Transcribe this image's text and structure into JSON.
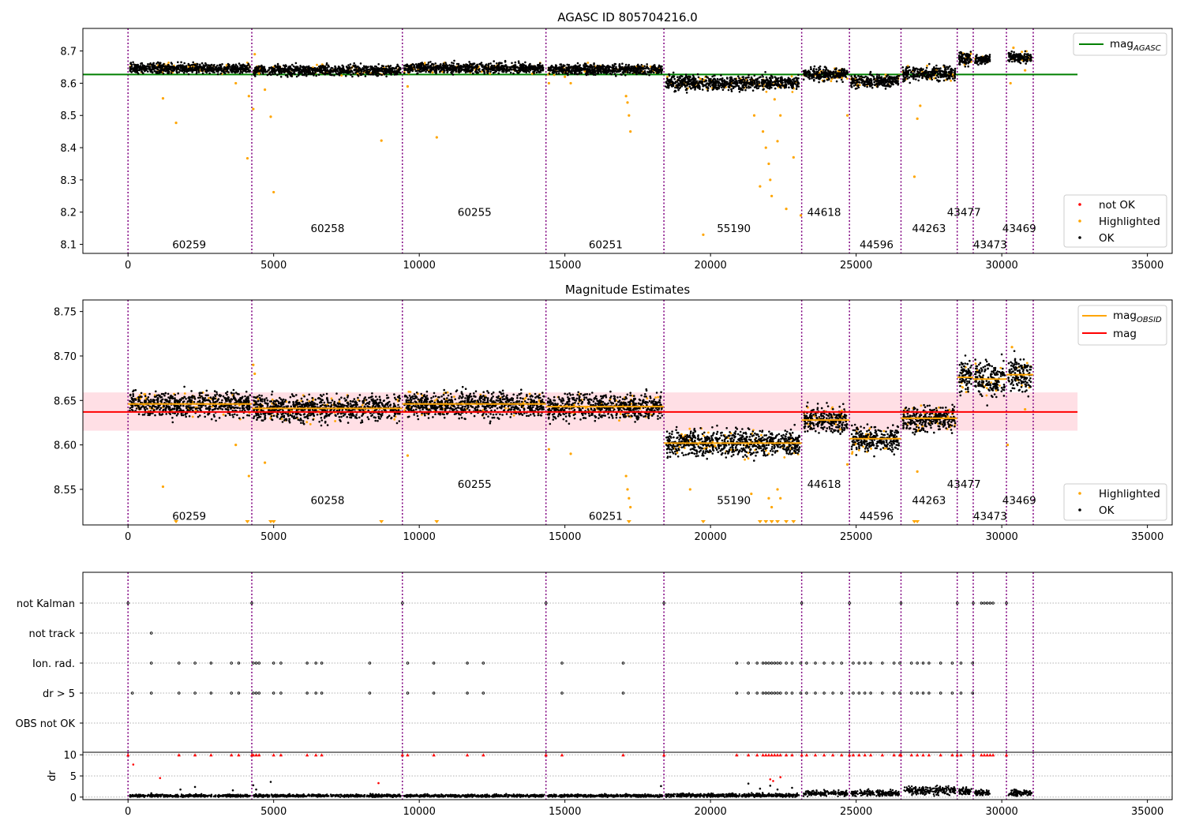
{
  "chart_data": [
    {
      "type": "scatter",
      "title": "AGASC ID 805704216.0",
      "xlim": [
        -1550,
        35850
      ],
      "ylim": [
        8.072,
        8.77
      ],
      "xticks": [
        0,
        5000,
        10000,
        15000,
        20000,
        25000,
        30000,
        35000
      ],
      "yticks": [
        8.1,
        8.2,
        8.3,
        8.4,
        8.5,
        8.6,
        8.7
      ],
      "mag_agasc": 8.627,
      "mag_agasc_x_range": [
        -1550,
        32600
      ],
      "obsid_boundaries": [
        0,
        4250,
        9420,
        14350,
        18400,
        23130,
        24770,
        26540,
        28470,
        29020,
        30160,
        31080
      ],
      "obsid_labels": [
        {
          "obsid": "60259",
          "x": 2100,
          "y": 8.1
        },
        {
          "obsid": "60258",
          "x": 6850,
          "y": 8.15
        },
        {
          "obsid": "60255",
          "x": 11900,
          "y": 8.2
        },
        {
          "obsid": "60251",
          "x": 16400,
          "y": 8.1
        },
        {
          "obsid": "55190",
          "x": 20800,
          "y": 8.15
        },
        {
          "obsid": "44618",
          "x": 23900,
          "y": 8.2
        },
        {
          "obsid": "44596",
          "x": 25700,
          "y": 8.1
        },
        {
          "obsid": "44263",
          "x": 27500,
          "y": 8.15
        },
        {
          "obsid": "43477",
          "x": 28700,
          "y": 8.2
        },
        {
          "obsid": "43473",
          "x": 29600,
          "y": 8.1
        },
        {
          "obsid": "43469",
          "x": 30600,
          "y": 8.15
        }
      ],
      "ok_segments": [
        {
          "x": [
            0,
            4250
          ],
          "mean": 8.646,
          "spread": 0.014
        },
        {
          "x": [
            4250,
            9420
          ],
          "mean": 8.64,
          "spread": 0.014
        },
        {
          "x": [
            9420,
            14350
          ],
          "mean": 8.647,
          "spread": 0.014
        },
        {
          "x": [
            14350,
            18400
          ],
          "mean": 8.643,
          "spread": 0.014
        },
        {
          "x": [
            18400,
            23130
          ],
          "mean": 8.601,
          "spread": 0.02
        },
        {
          "x": [
            23130,
            24770
          ],
          "mean": 8.628,
          "spread": 0.018
        },
        {
          "x": [
            24770,
            26540
          ],
          "mean": 8.607,
          "spread": 0.018
        },
        {
          "x": [
            26540,
            28470
          ],
          "mean": 8.63,
          "spread": 0.02
        },
        {
          "x": [
            28470,
            29020
          ],
          "mean": 8.676,
          "spread": 0.02
        },
        {
          "x": [
            29020,
            29650
          ],
          "mean": 8.674,
          "spread": 0.012
        },
        {
          "x": [
            30160,
            31080
          ],
          "mean": 8.68,
          "spread": 0.015
        }
      ],
      "highlighted_points": [
        [
          1200,
          8.553
        ],
        [
          1650,
          8.477
        ],
        [
          3700,
          8.6
        ],
        [
          4100,
          8.367
        ],
        [
          4150,
          8.56
        ],
        [
          4300,
          8.52
        ],
        [
          4350,
          8.69
        ],
        [
          4500,
          8.63
        ],
        [
          4700,
          8.58
        ],
        [
          4900,
          8.496
        ],
        [
          5000,
          8.262
        ],
        [
          8700,
          8.422
        ],
        [
          9600,
          8.59
        ],
        [
          10600,
          8.432
        ],
        [
          14450,
          8.6
        ],
        [
          15000,
          8.62
        ],
        [
          15200,
          8.6
        ],
        [
          17100,
          8.56
        ],
        [
          17150,
          8.54
        ],
        [
          17200,
          8.5
        ],
        [
          17250,
          8.45
        ],
        [
          19750,
          8.13
        ],
        [
          21500,
          8.5
        ],
        [
          21700,
          8.28
        ],
        [
          21800,
          8.45
        ],
        [
          21900,
          8.4
        ],
        [
          22000,
          8.35
        ],
        [
          22050,
          8.3
        ],
        [
          22100,
          8.25
        ],
        [
          22200,
          8.55
        ],
        [
          22300,
          8.42
        ],
        [
          22400,
          8.5
        ],
        [
          22600,
          8.21
        ],
        [
          22850,
          8.37
        ],
        [
          23100,
          8.19
        ],
        [
          24700,
          8.5
        ],
        [
          27000,
          8.31
        ],
        [
          27100,
          8.49
        ],
        [
          27200,
          8.53
        ],
        [
          30300,
          8.6
        ],
        [
          30400,
          8.71
        ],
        [
          30800,
          8.64
        ]
      ],
      "legend": {
        "top_right": [
          "mag_AGASC"
        ],
        "bottom_right": [
          "not OK",
          "Highlighted",
          "OK"
        ]
      },
      "colors": {
        "ok": "#000000",
        "highlighted": "#ffa500",
        "not_ok": "#ff0000",
        "agasc_line": "#008000",
        "boundary": "#800080"
      }
    },
    {
      "type": "scatter",
      "title": "Magnitude Estimates",
      "xlim": [
        -1550,
        35850
      ],
      "ylim": [
        8.51,
        8.763
      ],
      "xticks": [
        0,
        5000,
        10000,
        15000,
        20000,
        25000,
        30000,
        35000
      ],
      "yticks": [
        8.55,
        8.6,
        8.65,
        8.7,
        8.75
      ],
      "mag": 8.637,
      "mag_band": [
        8.616,
        8.659
      ],
      "mag_x_range": [
        -1550,
        32600
      ],
      "obsid_boundaries": [
        0,
        4250,
        9420,
        14350,
        18400,
        23130,
        24770,
        26540,
        28470,
        29020,
        30160,
        31080
      ],
      "obsid_labels": [
        {
          "obsid": "60259",
          "x": 2100,
          "y": 8.52
        },
        {
          "obsid": "60258",
          "x": 6850,
          "y": 8.538
        },
        {
          "obsid": "60255",
          "x": 11900,
          "y": 8.556
        },
        {
          "obsid": "60251",
          "x": 16400,
          "y": 8.52
        },
        {
          "obsid": "55190",
          "x": 20800,
          "y": 8.538
        },
        {
          "obsid": "44618",
          "x": 23900,
          "y": 8.556
        },
        {
          "obsid": "44596",
          "x": 25700,
          "y": 8.52
        },
        {
          "obsid": "44263",
          "x": 27500,
          "y": 8.538
        },
        {
          "obsid": "43477",
          "x": 28700,
          "y": 8.556
        },
        {
          "obsid": "43473",
          "x": 29600,
          "y": 8.52
        },
        {
          "obsid": "43469",
          "x": 30600,
          "y": 8.538
        }
      ],
      "mag_obsid": [
        {
          "x": [
            0,
            4250
          ],
          "mag": 8.646
        },
        {
          "x": [
            4250,
            9420
          ],
          "mag": 8.641
        },
        {
          "x": [
            9420,
            14350
          ],
          "mag": 8.646
        },
        {
          "x": [
            14350,
            18400
          ],
          "mag": 8.643
        },
        {
          "x": [
            18400,
            23130
          ],
          "mag": 8.602
        },
        {
          "x": [
            23130,
            24770
          ],
          "mag": 8.628
        },
        {
          "x": [
            24770,
            26540
          ],
          "mag": 8.607
        },
        {
          "x": [
            26540,
            28470
          ],
          "mag": 8.63
        },
        {
          "x": [
            28470,
            29020
          ],
          "mag": 8.676
        },
        {
          "x": [
            29020,
            30160
          ],
          "mag": 8.674
        },
        {
          "x": [
            30160,
            31080
          ],
          "mag": 8.679
        }
      ],
      "highlighted_points": [
        [
          1200,
          8.553
        ],
        [
          3700,
          8.6
        ],
        [
          4150,
          8.565
        ],
        [
          4300,
          8.69
        ],
        [
          4350,
          8.68
        ],
        [
          4700,
          8.58
        ],
        [
          9600,
          8.588
        ],
        [
          14450,
          8.595
        ],
        [
          15200,
          8.59
        ],
        [
          17100,
          8.565
        ],
        [
          17150,
          8.55
        ],
        [
          17200,
          8.54
        ],
        [
          17250,
          8.53
        ],
        [
          19300,
          8.55
        ],
        [
          21400,
          8.545
        ],
        [
          22000,
          8.54
        ],
        [
          22100,
          8.53
        ],
        [
          22300,
          8.55
        ],
        [
          22400,
          8.54
        ],
        [
          24700,
          8.578
        ],
        [
          27100,
          8.57
        ],
        [
          30200,
          8.6
        ],
        [
          30350,
          8.71
        ],
        [
          30800,
          8.64
        ]
      ],
      "clipped_points_x": [
        1650,
        4100,
        4900,
        5000,
        8700,
        10600,
        17200,
        19750,
        21700,
        21900,
        22100,
        22300,
        22600,
        22850,
        27000,
        27100
      ],
      "legend": {
        "top_right": [
          "mag_OBSID",
          "mag"
        ],
        "bottom_right": [
          "Highlighted",
          "OK"
        ]
      },
      "colors": {
        "ok": "#000000",
        "highlighted": "#ffa500",
        "mag": "#ff0000",
        "mag_band": "#ffc0cb",
        "mag_obsid": "#ffa500",
        "boundary": "#800080"
      }
    },
    {
      "type": "scatter",
      "title": "",
      "xlim": [
        -1550,
        35850
      ],
      "xticks": [
        0,
        5000,
        10000,
        15000,
        20000,
        25000,
        30000,
        35000
      ],
      "flag_rows": [
        "not Kalman",
        "not track",
        "Ion. rad.",
        "dr > 5",
        "OBS not OK"
      ],
      "obsid_boundaries": [
        0,
        4250,
        9420,
        14350,
        18400,
        23130,
        24770,
        26540,
        28470,
        29020,
        30160,
        31080
      ],
      "flags": {
        "not Kalman": [
          0,
          4250,
          9420,
          14350,
          18400,
          23130,
          24770,
          26540,
          28470,
          29020,
          29300,
          29400,
          29500,
          29600,
          29700,
          30160
        ],
        "not track": [
          800
        ],
        "Ion. rad.": [
          800,
          1750,
          2300,
          2850,
          3550,
          3800,
          4300,
          4400,
          4500,
          5000,
          5250,
          6150,
          6450,
          6650,
          8300,
          9600,
          10500,
          11650,
          12200,
          14900,
          17000,
          20900,
          21300,
          21600,
          21800,
          21900,
          22000,
          22100,
          22200,
          22300,
          22400,
          22600,
          22800,
          23100,
          23300,
          23600,
          23900,
          24200,
          24500,
          24900,
          25100,
          25300,
          25500,
          25900,
          26300,
          26500,
          26900,
          27100,
          27300,
          27500,
          27900,
          28300,
          28600,
          29000
        ],
        "dr > 5": [
          150,
          800,
          1750,
          2300,
          2850,
          3550,
          3800,
          4300,
          4400,
          4500,
          5000,
          5250,
          6150,
          6450,
          6650,
          8300,
          9600,
          10500,
          11650,
          12200,
          14900,
          17000,
          20900,
          21300,
          21600,
          21800,
          21900,
          22000,
          22100,
          22200,
          22300,
          22400,
          22600,
          22800,
          23100,
          23300,
          23600,
          23900,
          24200,
          24500,
          24900,
          25100,
          25300,
          25500,
          25900,
          26300,
          26500,
          26900,
          27100,
          27300,
          27500,
          27900,
          28300,
          28600,
          29000
        ],
        "OBS not OK": []
      },
      "colors": {
        "flag": "#000000",
        "boundary": "#800080"
      }
    },
    {
      "type": "scatter",
      "title": "",
      "ylabel": "dr",
      "xlim": [
        -1550,
        35850
      ],
      "ylim": [
        -0.6,
        10.6
      ],
      "xticks": [
        0,
        5000,
        10000,
        15000,
        20000,
        25000,
        30000,
        35000
      ],
      "yticks": [
        0,
        5,
        10
      ],
      "obsid_boundaries": [
        0,
        4250,
        9420,
        14350,
        18400,
        23130,
        24770,
        26540,
        28470,
        29020,
        30160,
        31080
      ],
      "dr_segments": [
        {
          "x": [
            0,
            4250
          ],
          "mean": 0.3,
          "spread": 0.3
        },
        {
          "x": [
            4250,
            9420
          ],
          "mean": 0.3,
          "spread": 0.3
        },
        {
          "x": [
            9420,
            14350
          ],
          "mean": 0.3,
          "spread": 0.3
        },
        {
          "x": [
            14350,
            18400
          ],
          "mean": 0.3,
          "spread": 0.3
        },
        {
          "x": [
            18400,
            23130
          ],
          "mean": 0.4,
          "spread": 0.4
        },
        {
          "x": [
            23130,
            24770
          ],
          "mean": 0.9,
          "spread": 0.6
        },
        {
          "x": [
            24770,
            26540
          ],
          "mean": 0.9,
          "spread": 0.6
        },
        {
          "x": [
            26540,
            28470
          ],
          "mean": 1.6,
          "spread": 0.9
        },
        {
          "x": [
            28470,
            29020
          ],
          "mean": 1.4,
          "spread": 0.8
        },
        {
          "x": [
            29020,
            29650
          ],
          "mean": 1.0,
          "spread": 0.6
        },
        {
          "x": [
            30160,
            31080
          ],
          "mean": 1.0,
          "spread": 0.6
        }
      ],
      "dr_outliers": [
        [
          800,
          0.9
        ],
        [
          1800,
          1.8
        ],
        [
          2300,
          2.4
        ],
        [
          3600,
          1.6
        ],
        [
          4300,
          2.8
        ],
        [
          4400,
          1.8
        ],
        [
          4900,
          3.6
        ],
        [
          18300,
          2.6
        ],
        [
          21300,
          3.2
        ],
        [
          21700,
          2.0
        ],
        [
          22050,
          2.7
        ],
        [
          22300,
          1.8
        ],
        [
          22800,
          2.2
        ]
      ],
      "dr_red_points": [
        [
          180,
          7.7
        ],
        [
          1100,
          4.5
        ],
        [
          8600,
          3.3
        ],
        [
          22050,
          4.2
        ],
        [
          22150,
          3.8
        ],
        [
          22400,
          4.7
        ]
      ],
      "dr_clipped_x": [
        0,
        4250,
        9420,
        14350,
        18400,
        23130,
        24770,
        26540,
        28470,
        29020,
        30160,
        1750,
        2300,
        2850,
        3550,
        3800,
        4300,
        4400,
        4500,
        5000,
        5250,
        6150,
        6450,
        6650,
        9600,
        10500,
        11650,
        12200,
        14900,
        17000,
        20900,
        21300,
        21600,
        21800,
        21900,
        22000,
        22100,
        22200,
        22300,
        22400,
        22600,
        22800,
        23300,
        23600,
        23900,
        24200,
        24500,
        24900,
        25100,
        25300,
        25500,
        25900,
        26300,
        26500,
        26900,
        27100,
        27300,
        27500,
        27900,
        28300,
        28600,
        29300,
        29400,
        29500,
        29600,
        29700
      ],
      "colors": {
        "ok": "#000000",
        "not_ok": "#ff0000",
        "boundary": "#800080"
      }
    }
  ]
}
